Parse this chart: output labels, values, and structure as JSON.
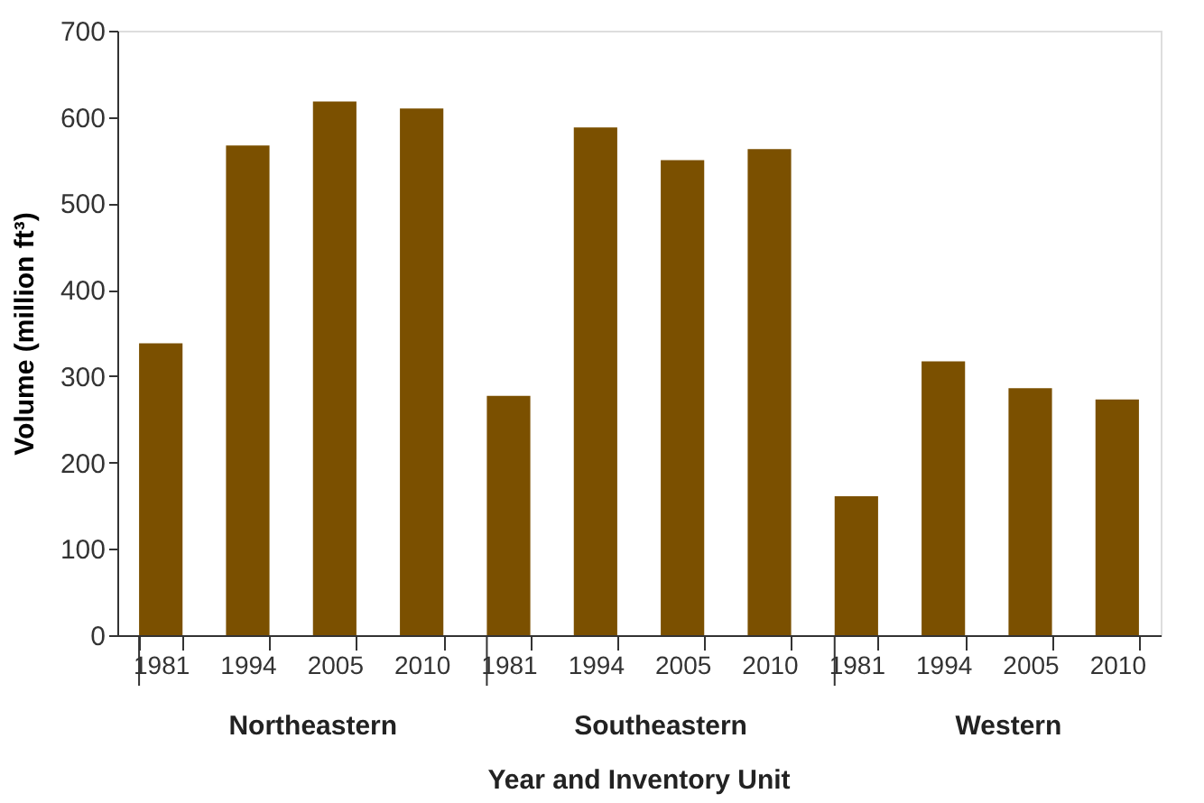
{
  "chart_data": {
    "type": "bar",
    "xlabel": "Year and Inventory Unit",
    "ylabel": "Volume (million ft³)",
    "categories": [
      "1981",
      "1994",
      "2005",
      "2010",
      "1981",
      "1994",
      "2005",
      "2010",
      "1981",
      "1994",
      "2005",
      "2010"
    ],
    "values": [
      338,
      567,
      618,
      610,
      277,
      588,
      550,
      563,
      161,
      317,
      286,
      273
    ],
    "color": "#7b5000",
    "ylim": [
      0,
      700
    ],
    "yticks": [
      0,
      100,
      200,
      300,
      400,
      500,
      600,
      700
    ],
    "grid": false,
    "annotations": [
      "Northeastern",
      "Southeastern",
      "Western"
    ]
  }
}
